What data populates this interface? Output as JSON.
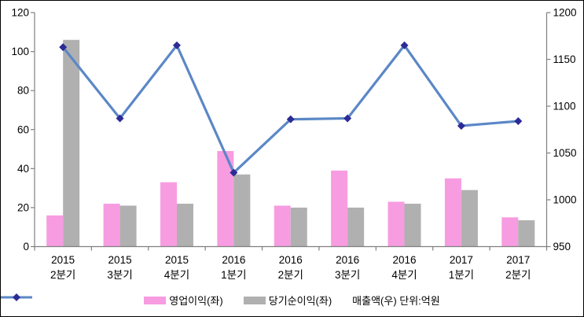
{
  "chart_data": {
    "type": "combo-bar-line",
    "title": "",
    "categories": [
      {
        "year": "2015",
        "quarter": "2분기"
      },
      {
        "year": "2015",
        "quarter": "3분기"
      },
      {
        "year": "2015",
        "quarter": "4분기"
      },
      {
        "year": "2016",
        "quarter": "1분기"
      },
      {
        "year": "2016",
        "quarter": "2분기"
      },
      {
        "year": "2016",
        "quarter": "3분기"
      },
      {
        "year": "2016",
        "quarter": "4분기"
      },
      {
        "year": "2017",
        "quarter": "1분기"
      },
      {
        "year": "2017",
        "quarter": "2분기"
      }
    ],
    "series": [
      {
        "name": "영업이익(좌)",
        "kind": "bar",
        "axis": "left",
        "color": "#F79CE1",
        "values": [
          16,
          22,
          33,
          49,
          21,
          39,
          23,
          35,
          15
        ]
      },
      {
        "name": "당기순이익(좌)",
        "kind": "bar",
        "axis": "left",
        "color": "#B0B0B0",
        "values": [
          106,
          21,
          22,
          37,
          20,
          20,
          22,
          29,
          13.5
        ]
      },
      {
        "name": "매출액(우) 단위:억원",
        "kind": "line",
        "axis": "right",
        "color": "#5B87C6",
        "marker": "diamond",
        "marker_color": "#2D2B96",
        "values": [
          1163,
          1087,
          1165,
          1029,
          1086,
          1087,
          1165,
          1079,
          1084
        ]
      }
    ],
    "left_axis": {
      "min": 0,
      "max": 120,
      "ticks": [
        0,
        20,
        40,
        60,
        80,
        100,
        120
      ]
    },
    "right_axis": {
      "min": 950,
      "max": 1200,
      "ticks": [
        950,
        1000,
        1050,
        1100,
        1150,
        1200
      ]
    },
    "legend_position": "bottom",
    "grid": false,
    "colors": {
      "axis": "#808080",
      "text": "#000000",
      "background": "#FFFFFF",
      "border": "#000000"
    }
  }
}
